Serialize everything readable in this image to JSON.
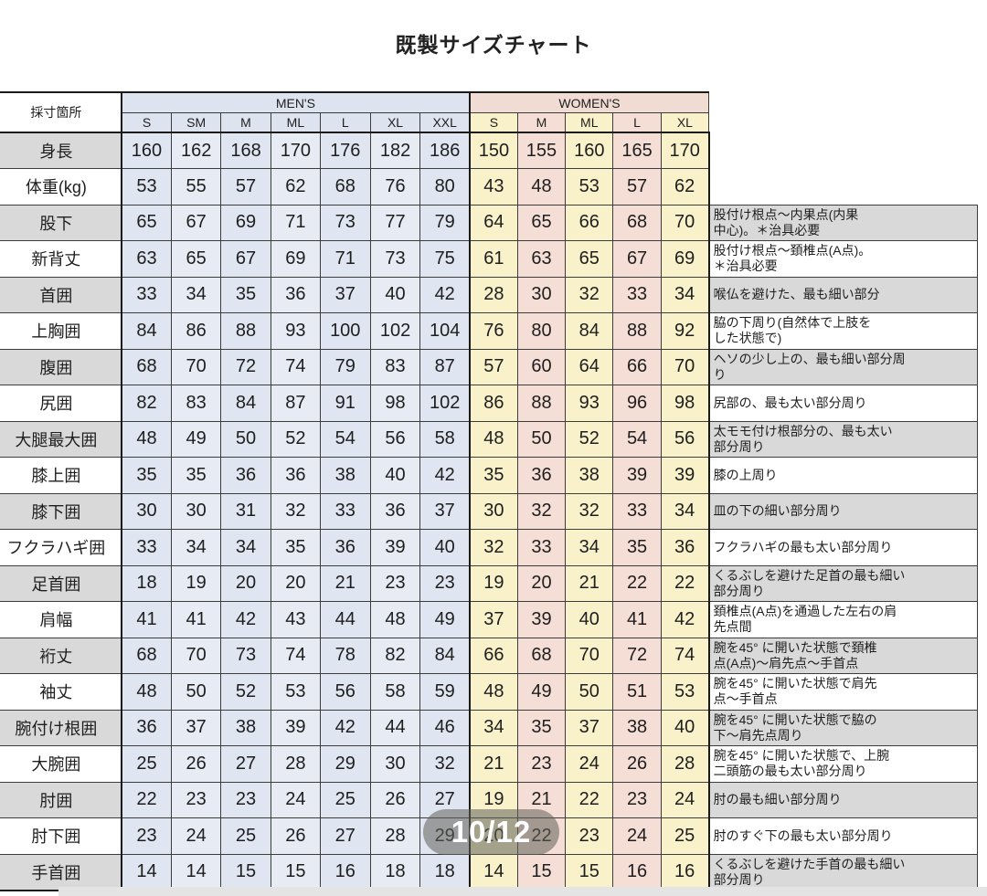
{
  "title": "既製サイズチャート",
  "page_badge": "10/12",
  "colors": {
    "mens_header": "#dde3ef",
    "mens_cell": "#dfe5f1",
    "mens_cell_alt": "#e7ebf4",
    "womens_band": "#f1dcd4",
    "womens_yellow": "#f8f1c9",
    "womens_pink": "#f5ded6",
    "label_grey": "#d9d9d9",
    "border": "#1a1a1a",
    "badge_bg": "rgba(96,96,90,0.55)",
    "badge_text": "#ffffff"
  },
  "table": {
    "corner_label": "採寸箇所",
    "mens_label": "MEN'S",
    "womens_label": "WOMEN'S",
    "mens_sizes": [
      "S",
      "SM",
      "M",
      "ML",
      "L",
      "XL",
      "XXL"
    ],
    "womens_sizes": [
      "S",
      "M",
      "ML",
      "L",
      "XL"
    ],
    "rows": [
      {
        "label": "身長",
        "men": [
          160,
          162,
          168,
          170,
          176,
          182,
          186
        ],
        "women": [
          150,
          155,
          160,
          165,
          170
        ],
        "note": ""
      },
      {
        "label": "体重(kg)",
        "men": [
          53,
          55,
          57,
          62,
          68,
          76,
          80
        ],
        "women": [
          43,
          48,
          53,
          57,
          62
        ],
        "note": ""
      },
      {
        "label": "股下",
        "men": [
          65,
          67,
          69,
          71,
          73,
          77,
          79
        ],
        "women": [
          64,
          65,
          66,
          68,
          70
        ],
        "note": "股付け根点～内果点(内果\n中心)。＊治具必要"
      },
      {
        "label": "新背丈",
        "men": [
          63,
          65,
          67,
          69,
          71,
          73,
          75
        ],
        "women": [
          61,
          63,
          65,
          67,
          69
        ],
        "note": "股付け根点～頚椎点(A点)。\n＊治具必要"
      },
      {
        "label": "首囲",
        "men": [
          33,
          34,
          35,
          36,
          37,
          40,
          42
        ],
        "women": [
          28,
          30,
          32,
          33,
          34
        ],
        "note": "喉仏を避けた、最も細い部分"
      },
      {
        "label": "上胸囲",
        "men": [
          84,
          86,
          88,
          93,
          100,
          102,
          104
        ],
        "women": [
          76,
          80,
          84,
          88,
          92
        ],
        "note": "脇の下周り(自然体で上肢を\nした状態で)"
      },
      {
        "label": "腹囲",
        "men": [
          68,
          70,
          72,
          74,
          79,
          83,
          87
        ],
        "women": [
          57,
          60,
          64,
          66,
          70
        ],
        "note": "ヘソの少し上の、最も細い部分周\nり"
      },
      {
        "label": "尻囲",
        "men": [
          82,
          83,
          84,
          87,
          91,
          98,
          102
        ],
        "women": [
          86,
          88,
          93,
          96,
          98
        ],
        "note": "尻部の、最も太い部分周り"
      },
      {
        "label": "大腿最大囲",
        "men": [
          48,
          49,
          50,
          52,
          54,
          56,
          58
        ],
        "women": [
          48,
          50,
          52,
          54,
          56
        ],
        "note": "太モモ付け根部分の、最も太い\n部分周り"
      },
      {
        "label": "膝上囲",
        "men": [
          35,
          35,
          36,
          36,
          38,
          40,
          42
        ],
        "women": [
          35,
          36,
          38,
          39,
          39
        ],
        "note": "膝の上周り"
      },
      {
        "label": "膝下囲",
        "men": [
          30,
          30,
          31,
          32,
          33,
          36,
          37
        ],
        "women": [
          30,
          32,
          32,
          33,
          34
        ],
        "note": "皿の下の細い部分周り"
      },
      {
        "label": "フクラハギ囲",
        "men": [
          33,
          34,
          34,
          35,
          36,
          39,
          40
        ],
        "women": [
          32,
          33,
          34,
          35,
          36
        ],
        "note": "フクラハギの最も太い部分周り"
      },
      {
        "label": "足首囲",
        "men": [
          18,
          19,
          20,
          20,
          21,
          23,
          23
        ],
        "women": [
          19,
          20,
          21,
          22,
          22
        ],
        "note": "くるぶしを避けた足首の最も細い\n部分周り"
      },
      {
        "label": "肩幅",
        "men": [
          41,
          41,
          42,
          43,
          44,
          48,
          49
        ],
        "women": [
          37,
          39,
          40,
          41,
          42
        ],
        "note": "頚椎点(A点)を通過した左右の肩\n先点間"
      },
      {
        "label": "裄丈",
        "men": [
          68,
          70,
          73,
          74,
          78,
          82,
          84
        ],
        "women": [
          66,
          68,
          70,
          72,
          74
        ],
        "note": "腕を45° に開いた状態で頚椎\n点(A点)～肩先点～手首点"
      },
      {
        "label": "袖丈",
        "men": [
          48,
          50,
          52,
          53,
          56,
          58,
          59
        ],
        "women": [
          48,
          49,
          50,
          51,
          53
        ],
        "note": "腕を45° に開いた状態で肩先\n点～手首点"
      },
      {
        "label": "腕付け根囲",
        "men": [
          36,
          37,
          38,
          39,
          42,
          44,
          46
        ],
        "women": [
          34,
          35,
          37,
          38,
          40
        ],
        "note": "腕を45° に開いた状態で脇の\n下～肩先点周り"
      },
      {
        "label": "大腕囲",
        "men": [
          25,
          26,
          27,
          28,
          29,
          30,
          32
        ],
        "women": [
          21,
          23,
          24,
          26,
          28
        ],
        "note": "腕を45° に開いた状態で、上腕\n二頭筋の最も太い部分周り"
      },
      {
        "label": "肘囲",
        "men": [
          22,
          23,
          23,
          24,
          25,
          26,
          27
        ],
        "women": [
          19,
          21,
          22,
          23,
          24
        ],
        "note": "肘の最も細い部分周り"
      },
      {
        "label": "肘下囲",
        "men": [
          23,
          24,
          25,
          26,
          27,
          28,
          29
        ],
        "women": [
          20,
          22,
          23,
          24,
          25
        ],
        "note": "肘のすぐ下の最も太い部分周り"
      },
      {
        "label": "手首囲",
        "men": [
          14,
          14,
          15,
          15,
          16,
          18,
          18
        ],
        "women": [
          14,
          15,
          15,
          16,
          16
        ],
        "note": "くるぶしを避けた手首の最も細い\n部分周り"
      }
    ]
  }
}
